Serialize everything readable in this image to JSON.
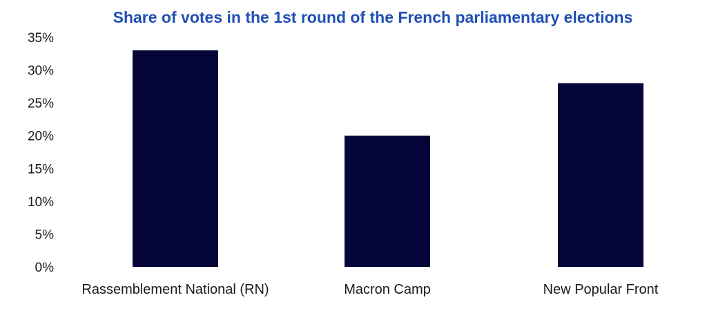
{
  "chart_data": {
    "type": "bar",
    "title": "Share of votes in the 1st round of the French parliamentary elections",
    "categories": [
      "Rassemblement National (RN)",
      "Macron Camp",
      "New Popular Front"
    ],
    "values": [
      33,
      20,
      28
    ],
    "ylim": [
      0,
      35
    ],
    "yticks": [
      "0%",
      "5%",
      "10%",
      "15%",
      "20%",
      "25%",
      "30%",
      "35%"
    ],
    "grid": false,
    "bar_color": "#05053a",
    "title_color": "#1f4fb4"
  }
}
